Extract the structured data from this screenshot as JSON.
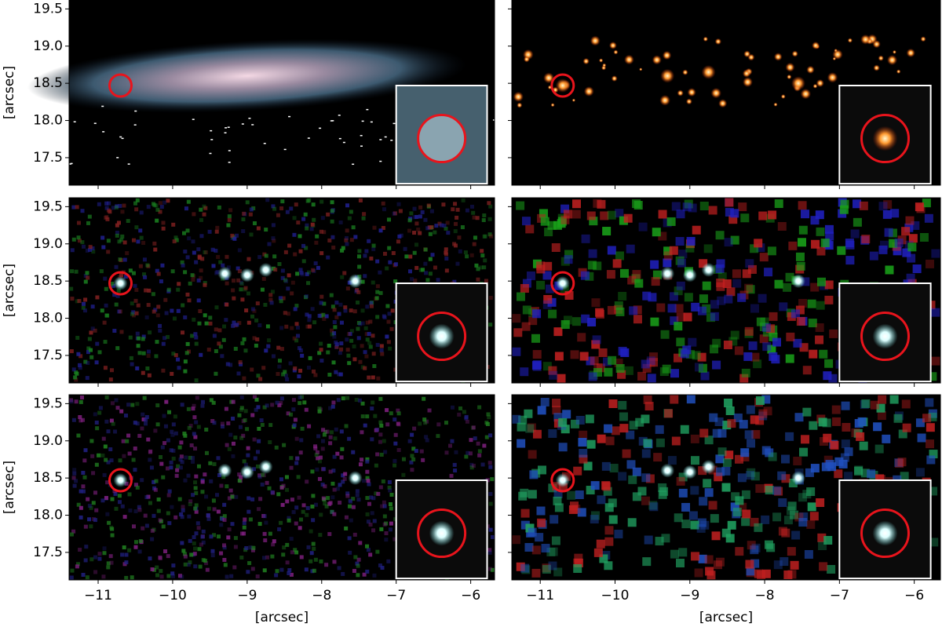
{
  "chart_data": [
    {
      "type": "image",
      "xlim": [
        -11.39,
        -5.68
      ],
      "ylim": [
        17.13,
        19.62
      ],
      "xticks": [
        -11,
        -10,
        -9,
        -8,
        -7,
        -6
      ],
      "yticks": [
        17.5,
        {
          "value": 18,
          "label": "18.0"
        },
        18.5,
        {
          "value": 19,
          "label": "19.0"
        },
        19.5
      ],
      "ylabel": "[arcsec]"
    },
    {
      "type": "image",
      "xlim": [
        -11.38,
        -5.65
      ],
      "ylim": [
        17.13,
        19.62
      ],
      "xticks": [
        -11,
        -10,
        -9,
        -8,
        -7,
        -6
      ],
      "yticks": [
        17.5,
        18,
        18.5,
        19,
        19.5
      ]
    },
    {
      "type": "image",
      "xlim": [
        -11.39,
        -5.68
      ],
      "ylim": [
        17.13,
        19.62
      ],
      "xticks": [
        -11,
        -10,
        -9,
        -8,
        -7,
        -6
      ],
      "yticks": [
        17.5,
        {
          "value": 18,
          "label": "18.0"
        },
        18.5,
        {
          "value": 19,
          "label": "19.0"
        },
        19.5
      ],
      "ylabel": "[arcsec]"
    },
    {
      "type": "image",
      "xlim": [
        -11.38,
        -5.65
      ],
      "ylim": [
        17.13,
        19.62
      ],
      "xticks": [
        -11,
        -10,
        -9,
        -8,
        -7,
        -6
      ],
      "yticks": [
        17.5,
        18,
        18.5,
        19,
        19.5
      ]
    },
    {
      "type": "image",
      "xlim": [
        -11.39,
        -5.68
      ],
      "ylim": [
        17.13,
        19.62
      ],
      "xticks": [
        {
          "value": -11,
          "label": "−11"
        },
        {
          "value": -10,
          "label": "−10"
        },
        {
          "value": -9,
          "label": "−9"
        },
        {
          "value": -8,
          "label": "−8"
        },
        {
          "value": -7,
          "label": "−7"
        },
        {
          "value": -6,
          "label": "−6"
        }
      ],
      "yticks": [
        17.5,
        {
          "value": 18,
          "label": "18.0"
        },
        18.5,
        {
          "value": 19,
          "label": "19.0"
        },
        19.5
      ],
      "ylabel": "[arcsec]",
      "xlabel": "[arcsec]"
    },
    {
      "type": "image",
      "xlim": [
        -11.38,
        -5.65
      ],
      "ylim": [
        17.13,
        19.62
      ],
      "xticks": [
        {
          "value": -11,
          "label": "−11"
        },
        {
          "value": -10,
          "label": "−10"
        },
        {
          "value": -9,
          "label": "−9"
        },
        {
          "value": -8,
          "label": "−8"
        },
        {
          "value": -7,
          "label": "−7"
        },
        {
          "value": -6,
          "label": "−6"
        }
      ],
      "yticks": [
        17.5,
        18,
        18.5,
        19,
        19.5
      ],
      "xlabel": "[arcsec]"
    }
  ]
}
